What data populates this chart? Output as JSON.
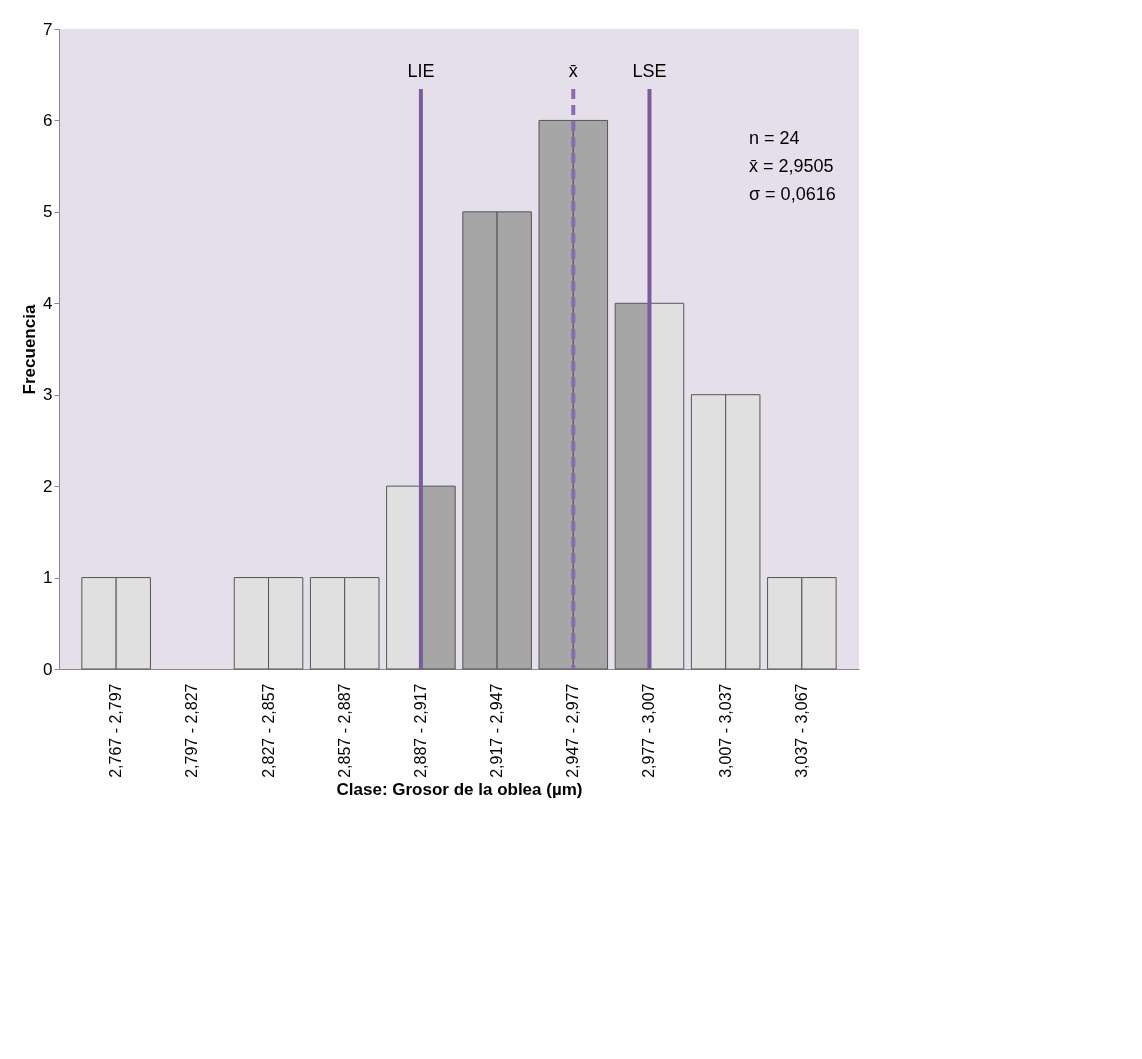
{
  "chart_data": {
    "type": "bar",
    "xlabel": "Clase: Grosor de la oblea (µm)",
    "ylabel": "Frecuencia",
    "categories": [
      "2,767 - 2,797",
      "2,797 - 2,827",
      "2,827 - 2,857",
      "2,857 - 2,887",
      "2,887 - 2,917",
      "2,917 - 2,947",
      "2,947 - 2,977",
      "2,977 - 3,007",
      "3,007 - 3,037",
      "3,037 - 3,067"
    ],
    "series": [
      {
        "values": [
          1,
          0,
          1,
          1,
          2,
          5,
          6,
          4,
          3,
          1
        ],
        "colors": [
          "#e0e0e0",
          "#e0e0e0",
          "#e0e0e0",
          "#e0e0e0",
          "#e0e0e0",
          "#a6a6a6",
          "#a6a6a6",
          "#a6a6a6",
          "#e0e0e0",
          "#e0e0e0"
        ]
      },
      {
        "values": [
          1,
          0,
          1,
          1,
          2,
          5,
          6,
          4,
          3,
          1
        ],
        "colors": [
          "#e0e0e0",
          "#e0e0e0",
          "#e0e0e0",
          "#e0e0e0",
          "#a6a6a6",
          "#a6a6a6",
          "#a6a6a6",
          "#e0e0e0",
          "#e0e0e0",
          "#e0e0e0"
        ]
      }
    ],
    "ylim": [
      0,
      7
    ],
    "yticks": [
      0,
      1,
      2,
      3,
      4,
      5,
      6,
      7
    ],
    "grid": false,
    "ref_lines": [
      {
        "axis": "x",
        "value": "2,887 - 2,917",
        "label": "LIE",
        "color": "#7b5b9e",
        "line_style": "solid"
      },
      {
        "axis": "x",
        "value": "2,947 - 2,977",
        "label": "x̄",
        "color": "#8a6bb0",
        "line_style": "dashed"
      },
      {
        "axis": "x",
        "value": "2,977 - 3,007",
        "label": "LSE",
        "color": "#7b5b9e",
        "line_style": "solid"
      }
    ],
    "annotations": [
      "n = 24",
      "x̄ = 2,9505",
      "σ = 0,0616"
    ]
  }
}
